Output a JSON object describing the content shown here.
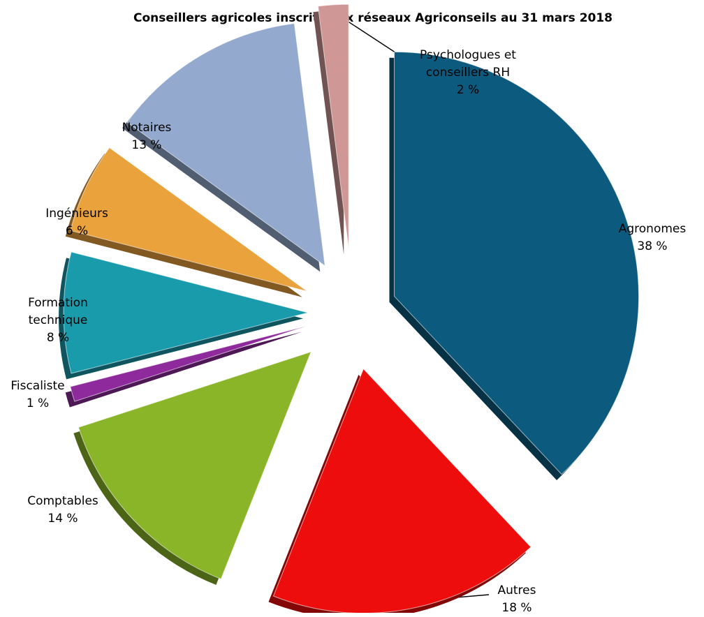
{
  "chart_data": {
    "type": "pie",
    "title": "Conseillers agricoles inscrits aux réseaux Agriconseils au 31 mars 2018",
    "slices": [
      {
        "label": "Agronomes",
        "value": 38,
        "value_label": "38 %",
        "color": "#0c5a7e"
      },
      {
        "label": "Autres",
        "value": 18,
        "value_label": "18 %",
        "color": "#ee0d0d"
      },
      {
        "label": "Comptables",
        "value": 14,
        "value_label": "14 %",
        "color": "#8ab528"
      },
      {
        "label": "Fiscaliste",
        "value": 1,
        "value_label": "1 %",
        "color": "#8e2a9c"
      },
      {
        "label": "Formation technique",
        "value": 8,
        "value_label": "8 %",
        "color": "#1a9bac"
      },
      {
        "label": "Ingénieurs",
        "value": 6,
        "value_label": "6 %",
        "color": "#eaa23c"
      },
      {
        "label": "Notaires",
        "value": 13,
        "value_label": "13 %",
        "color": "#94a9ce"
      },
      {
        "label": "Psychologues et conseillers RH",
        "value": 2,
        "value_label": "2 %",
        "color": "#d09797"
      }
    ]
  }
}
